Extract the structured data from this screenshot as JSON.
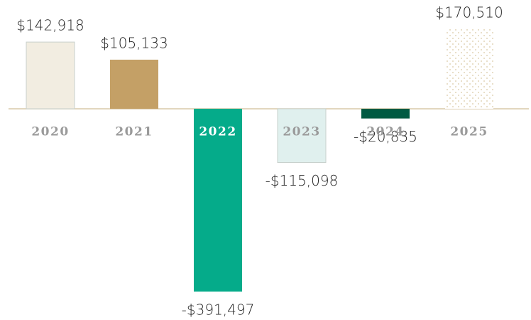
{
  "chart_data": {
    "type": "bar",
    "categories": [
      "2020",
      "2021",
      "2022",
      "2023",
      "2024",
      "2025"
    ],
    "values": [
      142918,
      105133,
      -391497,
      -115098,
      -20835,
      170510
    ],
    "value_labels": [
      "$142,918",
      "$105,133",
      "-$391,497",
      "-$115,098",
      "-$20,835",
      "$170,510"
    ],
    "colors": [
      "#f2ede1",
      "#c4a066",
      "#05ab8a",
      "#e0f0ee",
      "#005a42",
      "#d9c9a3"
    ]
  }
}
